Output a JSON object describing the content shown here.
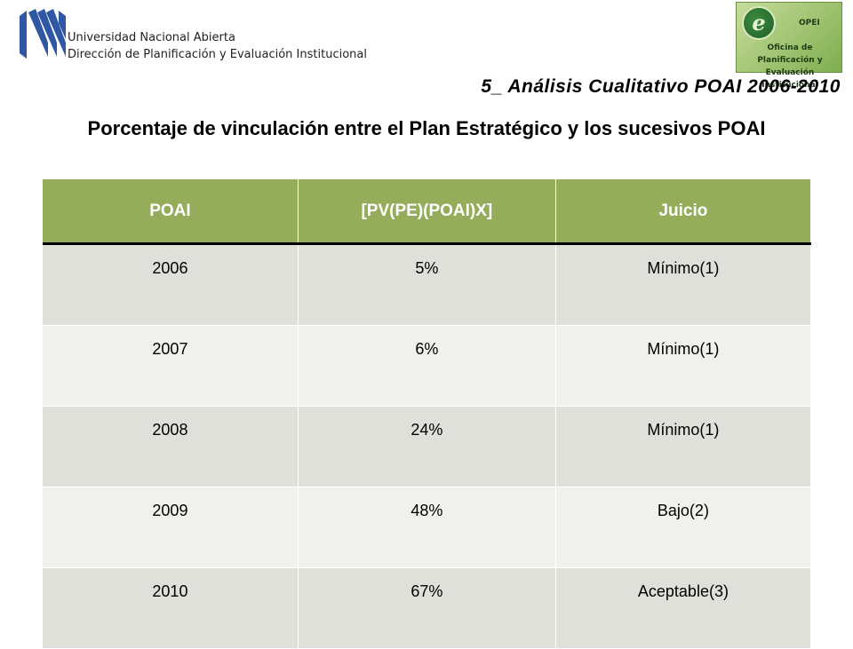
{
  "header": {
    "institution": "Universidad Nacional Abierta",
    "department": "Dirección de Planificación y Evaluación Institucional",
    "logo_abbr": "OPEI",
    "logo_name": "Oficina de Planificación y Evaluación Institucional",
    "logo_letter": "e"
  },
  "subtitle": "5_ Análisis Cualitativo POAI 2006-2010",
  "title": "Porcentaje de vinculación  entre el  Plan Estratégico y los sucesivos POAI",
  "table": {
    "headers": [
      "POAI",
      "[PV(PE)(POAI)X]",
      "Juicio"
    ],
    "rows": [
      [
        "2006",
        "5%",
        "Mínimo(1)"
      ],
      [
        "2007",
        "6%",
        "Mínimo(1)"
      ],
      [
        "2008",
        "24%",
        "Mínimo(1)"
      ],
      [
        "2009",
        "48%",
        "Bajo(2)"
      ],
      [
        "2010",
        "67%",
        "Aceptable(3)"
      ]
    ]
  },
  "colors": {
    "header_green": "#95ad5a",
    "row_dark": "#dfe0d9",
    "row_light": "#f0f0ec",
    "logo_blue": "#2f57a3"
  }
}
